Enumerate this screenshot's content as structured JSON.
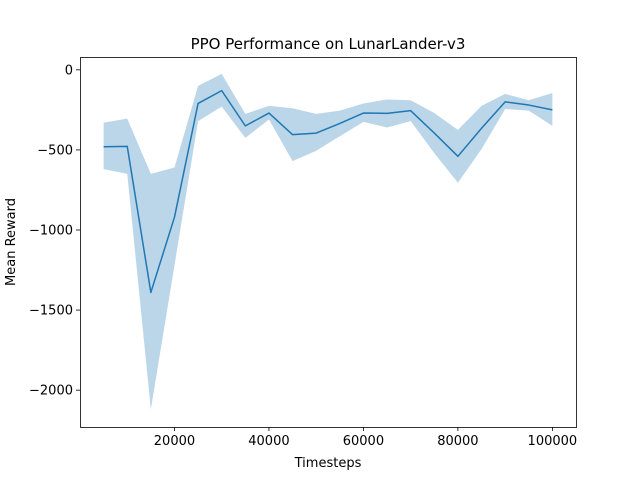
{
  "chart_data": {
    "type": "line",
    "title": "PPO Performance on LunarLander-v3",
    "xlabel": "Timesteps",
    "ylabel": "Mean Reward",
    "xlim": [
      0,
      105000
    ],
    "ylim": [
      -2230,
      80
    ],
    "xticks": [
      20000,
      40000,
      60000,
      80000,
      100000
    ],
    "xtick_labels": [
      "20000",
      "40000",
      "60000",
      "80000",
      "100000"
    ],
    "yticks": [
      0,
      -500,
      -1000,
      -1500,
      -2000
    ],
    "ytick_labels": [
      "0",
      "−500",
      "−1000",
      "−1500",
      "−2000"
    ],
    "grid": false,
    "colors": {
      "line": "#1f77b4",
      "band": "#1f77b4",
      "band_opacity": 0.3
    },
    "series": [
      {
        "x": [
          5000,
          10000,
          15000,
          20000,
          25000,
          30000,
          35000,
          40000,
          45000,
          50000,
          55000,
          60000,
          65000,
          70000,
          75000,
          80000,
          85000,
          90000,
          95000,
          100000
        ],
        "values": [
          -480,
          -478,
          -1390,
          -920,
          -210,
          -130,
          -350,
          -270,
          -405,
          -395,
          -335,
          -270,
          -272,
          -255,
          -395,
          -540,
          -365,
          -200,
          -220,
          -250
        ],
        "upper": [
          -330,
          -305,
          -650,
          -610,
          -100,
          -25,
          -275,
          -225,
          -240,
          -275,
          -255,
          -210,
          -185,
          -190,
          -270,
          -375,
          -225,
          -150,
          -190,
          -145
        ],
        "lower": [
          -620,
          -650,
          -2120,
          -1220,
          -320,
          -230,
          -425,
          -310,
          -570,
          -505,
          -415,
          -325,
          -360,
          -320,
          -520,
          -705,
          -495,
          -245,
          -255,
          -350
        ]
      }
    ]
  }
}
